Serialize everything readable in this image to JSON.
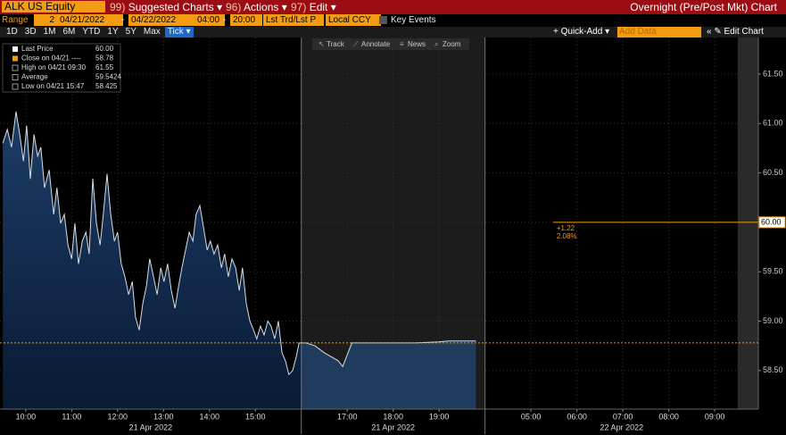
{
  "header": {
    "ticker": "ALK US Equity",
    "menus": [
      {
        "num": "99)",
        "label": "Suggested Charts"
      },
      {
        "num": "96)",
        "label": "Actions"
      },
      {
        "num": "97)",
        "label": "Edit"
      }
    ],
    "title": "Overnight (Pre/Post Mkt) Chart"
  },
  "range": {
    "label": "Range",
    "value": "2",
    "start": "04/21/2022",
    "sep": "-",
    "end": "04/22/2022",
    "from": "04:00",
    "to": "20:00",
    "price": "Lst Trd/Lst P",
    "currency": "Local CCY",
    "events": "Key Events"
  },
  "periods": [
    "1D",
    "3D",
    "1M",
    "6M",
    "YTD",
    "1Y",
    "5Y",
    "Max",
    "Tick"
  ],
  "active_period": "Tick",
  "tools": {
    "quick_add": "Quick-Add",
    "add_data": "Add Data",
    "edit_chart": "Edit Chart"
  },
  "chart_tools": [
    "Track",
    "Annotate",
    "News",
    "Zoom"
  ],
  "chart_data": {
    "type": "line",
    "legend": [
      {
        "label": "Last Price",
        "value": "60.00"
      },
      {
        "label": "Close on 04/21 ----",
        "value": "58.78"
      },
      {
        "label": "High on 04/21 09:30",
        "value": "61.55"
      },
      {
        "label": "Average",
        "value": "59.5424"
      },
      {
        "label": "Low on 04/21 15:47",
        "value": "58.425"
      }
    ],
    "series": [
      {
        "name": "Last Price",
        "color": "#d8dee6",
        "x": [
          0,
          0.1,
          0.19,
          0.29,
          0.37,
          0.45,
          0.52,
          0.6,
          0.68,
          0.76,
          0.83,
          0.91,
          1.01,
          1.11,
          1.18,
          1.26,
          1.34,
          1.42,
          1.5,
          1.57,
          1.65,
          1.73,
          1.81,
          1.88,
          1.96,
          2.04,
          2.12,
          2.19,
          2.27,
          2.35,
          2.43,
          2.5,
          2.58,
          2.66,
          2.74,
          2.82,
          2.89,
          2.97,
          3.05,
          3.13,
          3.2,
          3.28,
          3.36,
          3.44,
          3.51,
          3.59,
          3.67,
          3.75,
          3.83,
          3.9,
          3.98,
          4.06,
          4.14,
          4.21,
          4.29,
          4.37,
          4.45,
          4.52,
          4.6,
          4.68,
          4.76,
          4.83,
          4.91,
          4.99,
          5.07,
          5.15,
          5.22,
          5.3,
          5.38,
          5.46,
          5.53,
          5.61,
          5.69,
          5.77,
          5.84,
          5.92,
          6.0,
          6.08,
          6.16,
          6.23,
          6.31,
          6.39,
          6.45,
          6.5,
          6.6,
          6.8,
          7.0,
          7.3,
          7.4,
          7.6,
          9.0,
          9.5,
          9.7,
          10.3
        ],
        "values": [
          60.8,
          60.94,
          60.76,
          61.12,
          60.89,
          60.62,
          60.98,
          60.44,
          60.89,
          60.67,
          60.76,
          60.35,
          60.53,
          60.08,
          60.35,
          59.99,
          60.08,
          59.77,
          59.63,
          59.99,
          59.58,
          59.81,
          59.9,
          59.68,
          60.44,
          59.99,
          59.77,
          60.08,
          60.49,
          60.08,
          59.81,
          59.9,
          59.58,
          59.45,
          59.27,
          59.4,
          59.04,
          58.91,
          59.18,
          59.36,
          59.63,
          59.45,
          59.27,
          59.54,
          59.4,
          59.58,
          59.31,
          59.13,
          59.36,
          59.54,
          59.72,
          59.9,
          59.81,
          60.08,
          60.17,
          59.95,
          59.72,
          59.81,
          59.68,
          59.77,
          59.54,
          59.68,
          59.45,
          59.63,
          59.54,
          59.31,
          59.54,
          59.18,
          59.0,
          58.91,
          58.82,
          58.95,
          58.86,
          59.0,
          58.95,
          58.82,
          59.0,
          58.68,
          58.59,
          58.46,
          58.5,
          58.64,
          58.78,
          58.78,
          58.78,
          58.75,
          58.68,
          58.6,
          58.54,
          58.78,
          58.78,
          58.79,
          58.8,
          58.8
        ]
      }
    ],
    "close_line": 58.78,
    "last_price": {
      "x": 11.98,
      "value": 60,
      "label": "60.00",
      "change": "+1.22",
      "change_pct": "2.08%"
    },
    "shaded": [
      [
        6.5,
        10.5
      ],
      [
        16,
        16.45
      ]
    ],
    "xlim": [
      -0.06,
      16.45
    ],
    "xticks": [
      {
        "value": 0.5,
        "label": "10:00"
      },
      {
        "value": 1.5,
        "label": "11:00"
      },
      {
        "value": 2.5,
        "label": "12:00"
      },
      {
        "value": 3.5,
        "label": "13:00"
      },
      {
        "value": 4.5,
        "label": "14:00"
      },
      {
        "value": 5.5,
        "label": "15:00"
      },
      {
        "value": 7.5,
        "label": "17:00"
      },
      {
        "value": 8.5,
        "label": "18:00"
      },
      {
        "value": 9.5,
        "label": "19:00"
      },
      {
        "value": 11.5,
        "label": "05:00"
      },
      {
        "value": 12.5,
        "label": "06:00"
      },
      {
        "value": 13.5,
        "label": "07:00"
      },
      {
        "value": 14.5,
        "label": "08:00"
      },
      {
        "value": 15.5,
        "label": "09:00"
      }
    ],
    "x_groups": [
      "21 Apr 2022",
      "21 Apr 2022",
      "22 Apr 2022"
    ],
    "ylim": [
      58.11,
      61.87
    ],
    "yticks": [
      {
        "value": 58.5,
        "label": "58.50"
      },
      {
        "value": 59,
        "label": "59.00"
      },
      {
        "value": 59.5,
        "label": "59.50"
      },
      {
        "value": 60,
        "label": "60.00"
      },
      {
        "value": 60.5,
        "label": "60.50"
      },
      {
        "value": 61,
        "label": "61.00"
      },
      {
        "value": 61.5,
        "label": "61.50"
      }
    ],
    "grid": true
  }
}
